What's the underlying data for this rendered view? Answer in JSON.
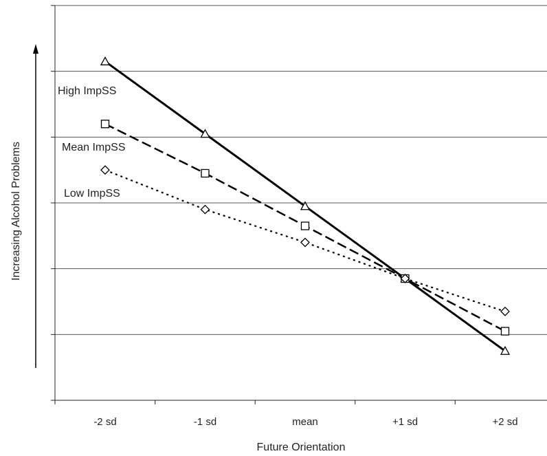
{
  "chart_data": {
    "type": "line",
    "xlabel": "Future Orientation",
    "ylabel": "Increasing Alcohol Problems",
    "categories": [
      "-2 sd",
      "-1 sd",
      "mean",
      "+1 sd",
      "+2 sd"
    ],
    "ylim": [
      0,
      6
    ],
    "y_tick_labels": false,
    "grid": true,
    "series": [
      {
        "name": "High ImpSS",
        "style": "solid",
        "marker": "triangle",
        "values": [
          5.15,
          4.05,
          2.95,
          1.85,
          0.75
        ]
      },
      {
        "name": "Mean ImpSS",
        "style": "dashed",
        "marker": "square",
        "values": [
          4.2,
          3.45,
          2.65,
          1.85,
          1.05
        ]
      },
      {
        "name": "Low ImpSS",
        "style": "dotted",
        "marker": "diamond",
        "values": [
          3.5,
          2.9,
          2.4,
          1.85,
          1.35
        ]
      }
    ]
  }
}
